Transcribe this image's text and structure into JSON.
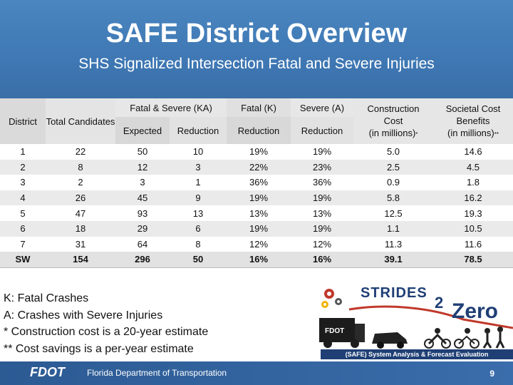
{
  "header": {
    "title": "SAFE District Overview",
    "subtitle": "SHS Signalized Intersection Fatal and Severe Injuries"
  },
  "table": {
    "col_district": "District",
    "col_total": "Total Candidates",
    "group_fs": "Fatal & Severe (KA)",
    "group_fatal": "Fatal (K)",
    "group_severe": "Severe (A)",
    "sub_expected": "Expected",
    "sub_reduction": "Reduction",
    "col_cost_line1": "Construction Cost",
    "col_cost_line2": "(in millions)",
    "col_cost_mark": "*",
    "col_soc_line1": "Societal Cost Benefits",
    "col_soc_line2": "(in millions)",
    "col_soc_mark": "**",
    "rows": [
      [
        "1",
        "22",
        "50",
        "10",
        "19%",
        "19%",
        "5.0",
        "14.6"
      ],
      [
        "2",
        "8",
        "12",
        "3",
        "22%",
        "23%",
        "2.5",
        "4.5"
      ],
      [
        "3",
        "2",
        "3",
        "1",
        "36%",
        "36%",
        "0.9",
        "1.8"
      ],
      [
        "4",
        "26",
        "45",
        "9",
        "19%",
        "19%",
        "5.8",
        "16.2"
      ],
      [
        "5",
        "47",
        "93",
        "13",
        "13%",
        "13%",
        "12.5",
        "19.3"
      ],
      [
        "6",
        "18",
        "29",
        "6",
        "19%",
        "19%",
        "1.1",
        "10.5"
      ],
      [
        "7",
        "31",
        "64",
        "8",
        "12%",
        "12%",
        "11.3",
        "11.6"
      ]
    ],
    "total_row": [
      "SW",
      "154",
      "296",
      "50",
      "16%",
      "16%",
      "39.1",
      "78.5"
    ]
  },
  "notes": [
    "K: Fatal Crashes",
    "A: Crashes with Severe Injuries",
    "* Construction cost is a 20-year estimate",
    "** Cost savings is a per-year estimate"
  ],
  "logo": {
    "strides": "STRIDES",
    "two": "2",
    "zero": "Zero",
    "fdot_truck": "FDOT",
    "banner": "(SAFE) System Analysis & Forecast Evaluation"
  },
  "footer": {
    "fdot": "FDOT",
    "department": "Florida Department of Transportation",
    "page": "9"
  },
  "colors": {
    "header_blue": "#4a86c0",
    "footer_blue": "#2c5a93",
    "logo_navy": "#1f3f75"
  }
}
